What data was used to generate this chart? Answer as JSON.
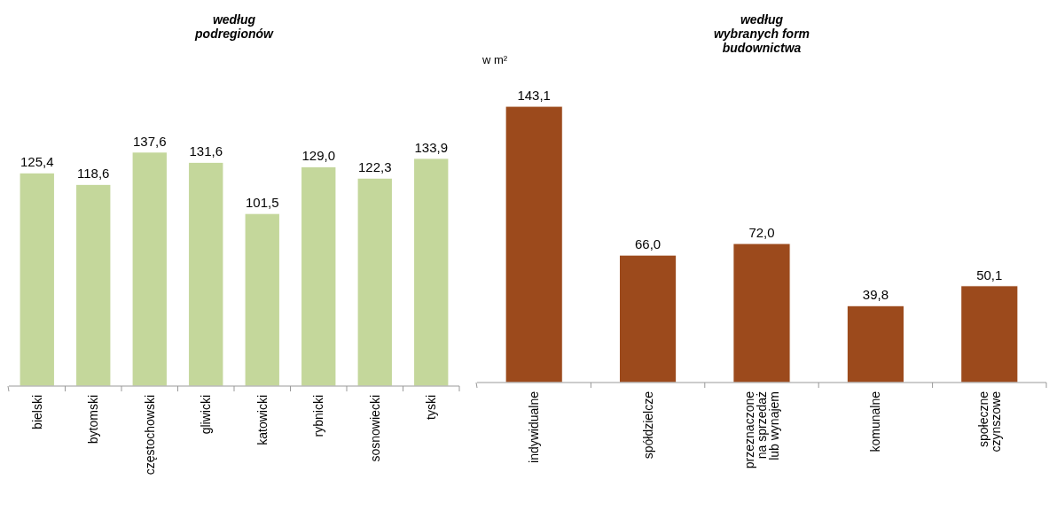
{
  "chart_data": [
    {
      "type": "bar",
      "title": "według\npodregionów",
      "categories": [
        "bielski",
        "bytomski",
        "częstochowski",
        "gliwicki",
        "katowicki",
        "rybnicki",
        "sosnowiecki",
        "tyski"
      ],
      "values": [
        125.4,
        118.6,
        137.6,
        131.6,
        101.5,
        129.0,
        122.3,
        133.9
      ],
      "value_labels": [
        "125,4",
        "118,6",
        "137,6",
        "131,6",
        "101,5",
        "129,0",
        "122,3",
        "133,9"
      ],
      "color": "#c4d79b"
    },
    {
      "type": "bar",
      "title": "według\nwybranych form\nbudownictwa",
      "ylabel": "w m²",
      "categories": [
        "indywidualne",
        "spółdzielcze",
        "przeznaczone\nna sprzedaż\nlub wynajem",
        "komunalne",
        "społeczne\nczynszowe"
      ],
      "values": [
        143.1,
        66.0,
        72.0,
        39.8,
        50.1
      ],
      "value_labels": [
        "143,1",
        "66,0",
        "72,0",
        "39,8",
        "50,1"
      ],
      "color": "#9c4a1c"
    }
  ]
}
